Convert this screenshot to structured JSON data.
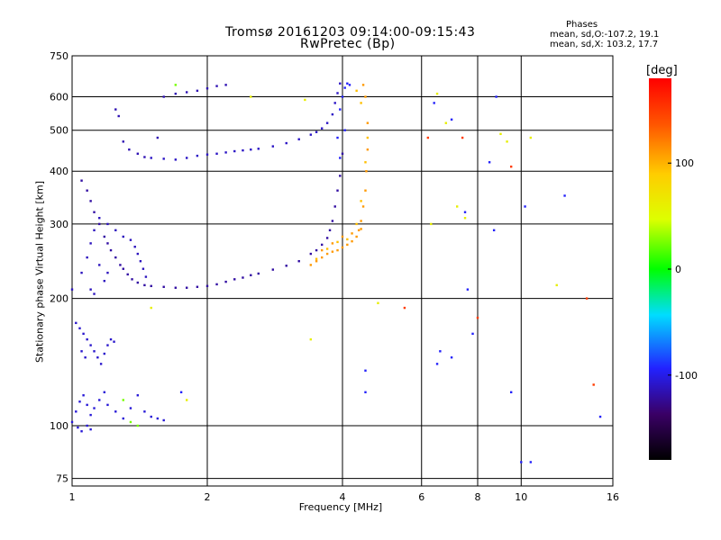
{
  "title": "Tromsø 20161203 09:14:00-09:15:43",
  "subtitle": "RwPretec (Bp)",
  "phases_info": {
    "heading": "Phases",
    "line_o": "mean, sd,O:-107.2, 19.1",
    "line_x": "mean, sd,X: 103.2, 17.7"
  },
  "chart_data": {
    "type": "scatter",
    "xlabel": "Frequency [MHz]",
    "ylabel": "Stationary phase Virtual Height [km]",
    "x_scale": "log",
    "y_scale": "log",
    "xlim": [
      1,
      16
    ],
    "ylim": [
      72,
      750
    ],
    "x_ticks": [
      1,
      2,
      4,
      6,
      8,
      10,
      16
    ],
    "y_ticks": [
      75,
      100,
      200,
      300,
      400,
      500,
      600,
      750
    ],
    "grid": true,
    "colorbar": {
      "label": "[deg]",
      "range": [
        -180,
        180
      ],
      "ticks": [
        100,
        0,
        -100
      ]
    },
    "series": [
      {
        "phase": -110,
        "points": [
          [
            1.5,
            430
          ],
          [
            1.6,
            428
          ],
          [
            1.7,
            426
          ],
          [
            1.8,
            430
          ],
          [
            1.9,
            435
          ],
          [
            2.0,
            438
          ],
          [
            2.1,
            440
          ],
          [
            2.2,
            443
          ],
          [
            2.3,
            446
          ],
          [
            2.4,
            448
          ],
          [
            2.5,
            450
          ],
          [
            2.6,
            452
          ],
          [
            2.8,
            458
          ],
          [
            3.0,
            466
          ],
          [
            3.2,
            476
          ],
          [
            3.4,
            488
          ],
          [
            3.5,
            495
          ],
          [
            3.6,
            505
          ],
          [
            3.7,
            520
          ],
          [
            3.8,
            545
          ],
          [
            3.85,
            580
          ],
          [
            3.9,
            612
          ],
          [
            3.95,
            645
          ]
        ]
      },
      {
        "phase": -115,
        "points": [
          [
            1.3,
            470
          ],
          [
            1.34,
            450
          ],
          [
            1.4,
            440
          ],
          [
            1.45,
            432
          ],
          [
            1.55,
            480
          ],
          [
            1.6,
            600
          ],
          [
            1.7,
            610
          ],
          [
            1.8,
            615
          ],
          [
            1.9,
            620
          ],
          [
            2.0,
            628
          ],
          [
            2.1,
            636
          ],
          [
            2.2,
            640
          ],
          [
            1.25,
            560
          ],
          [
            1.27,
            540
          ]
        ]
      },
      {
        "phase": -120,
        "points": [
          [
            1.05,
            380
          ],
          [
            1.08,
            360
          ],
          [
            1.1,
            340
          ],
          [
            1.12,
            320
          ],
          [
            1.15,
            300
          ],
          [
            1.18,
            280
          ],
          [
            1.2,
            270
          ],
          [
            1.22,
            260
          ],
          [
            1.25,
            250
          ],
          [
            1.28,
            240
          ],
          [
            1.3,
            235
          ],
          [
            1.33,
            228
          ],
          [
            1.36,
            222
          ],
          [
            1.4,
            218
          ],
          [
            1.45,
            215
          ],
          [
            1.5,
            214
          ],
          [
            1.6,
            213
          ],
          [
            1.7,
            212
          ],
          [
            1.8,
            212
          ],
          [
            1.9,
            213
          ],
          [
            2.0,
            214
          ],
          [
            2.1,
            216
          ],
          [
            2.2,
            219
          ],
          [
            2.3,
            222
          ],
          [
            2.4,
            224
          ],
          [
            2.5,
            227
          ],
          [
            2.6,
            229
          ],
          [
            2.8,
            234
          ],
          [
            3.0,
            239
          ],
          [
            3.2,
            245
          ],
          [
            3.4,
            255
          ],
          [
            3.5,
            260
          ],
          [
            3.6,
            268
          ],
          [
            3.7,
            278
          ],
          [
            3.75,
            290
          ],
          [
            3.8,
            305
          ],
          [
            3.85,
            330
          ],
          [
            3.9,
            360
          ],
          [
            3.95,
            390
          ],
          [
            4.0,
            440
          ]
        ]
      },
      {
        "phase": -112,
        "points": [
          [
            1.0,
            210
          ],
          [
            1.05,
            230
          ],
          [
            1.08,
            250
          ],
          [
            1.1,
            270
          ],
          [
            1.12,
            290
          ],
          [
            1.15,
            310
          ],
          [
            1.2,
            300
          ],
          [
            1.25,
            290
          ],
          [
            1.3,
            280
          ],
          [
            1.35,
            275
          ],
          [
            1.38,
            265
          ],
          [
            1.4,
            255
          ],
          [
            1.42,
            245
          ],
          [
            1.44,
            235
          ],
          [
            1.46,
            225
          ],
          [
            1.15,
            240
          ],
          [
            1.2,
            230
          ],
          [
            1.18,
            220
          ],
          [
            1.1,
            210
          ],
          [
            1.12,
            205
          ]
        ]
      },
      {
        "phase": -108,
        "points": [
          [
            1.02,
            175
          ],
          [
            1.04,
            170
          ],
          [
            1.06,
            165
          ],
          [
            1.08,
            160
          ],
          [
            1.1,
            155
          ],
          [
            1.12,
            150
          ],
          [
            1.14,
            145
          ],
          [
            1.16,
            140
          ],
          [
            1.18,
            148
          ],
          [
            1.2,
            155
          ],
          [
            1.22,
            160
          ],
          [
            1.24,
            158
          ],
          [
            1.05,
            150
          ],
          [
            1.07,
            145
          ]
        ]
      },
      {
        "phase": -105,
        "points": [
          [
            1.0,
            102
          ],
          [
            1.02,
            108
          ],
          [
            1.04,
            114
          ],
          [
            1.06,
            118
          ],
          [
            1.08,
            112
          ],
          [
            1.1,
            106
          ],
          [
            1.12,
            110
          ],
          [
            1.15,
            115
          ],
          [
            1.18,
            120
          ],
          [
            1.2,
            112
          ],
          [
            1.25,
            108
          ],
          [
            1.3,
            104
          ],
          [
            1.35,
            110
          ],
          [
            1.4,
            118
          ],
          [
            1.45,
            108
          ],
          [
            1.5,
            105
          ],
          [
            1.55,
            104
          ],
          [
            1.6,
            103
          ],
          [
            1.03,
            99
          ],
          [
            1.05,
            97
          ],
          [
            1.08,
            100
          ],
          [
            1.1,
            98
          ]
        ]
      },
      {
        "phase": 110,
        "points": [
          [
            3.4,
            240
          ],
          [
            3.5,
            245
          ],
          [
            3.6,
            250
          ],
          [
            3.7,
            255
          ],
          [
            3.8,
            258
          ],
          [
            3.9,
            260
          ],
          [
            4.0,
            264
          ],
          [
            4.1,
            268
          ],
          [
            4.2,
            273
          ],
          [
            4.3,
            280
          ],
          [
            4.35,
            290
          ],
          [
            4.4,
            305
          ],
          [
            4.45,
            330
          ],
          [
            4.5,
            360
          ],
          [
            4.52,
            400
          ],
          [
            4.55,
            450
          ],
          [
            4.55,
            520
          ],
          [
            4.5,
            600
          ],
          [
            4.45,
            640
          ],
          [
            3.6,
            260
          ],
          [
            3.8,
            270
          ],
          [
            4.0,
            280
          ],
          [
            4.2,
            285
          ],
          [
            4.4,
            292
          ]
        ]
      },
      {
        "phase": 95,
        "points": [
          [
            3.5,
            248
          ],
          [
            3.7,
            262
          ],
          [
            3.9,
            272
          ],
          [
            4.1,
            276
          ],
          [
            4.3,
            300
          ],
          [
            4.4,
            340
          ],
          [
            4.5,
            420
          ],
          [
            4.55,
            480
          ],
          [
            4.4,
            580
          ],
          [
            4.3,
            620
          ]
        ]
      },
      {
        "phase": -95,
        "points": [
          [
            3.95,
            560
          ],
          [
            4.0,
            600
          ],
          [
            4.05,
            630
          ],
          [
            4.1,
            645
          ],
          [
            4.15,
            640
          ],
          [
            4.05,
            500
          ],
          [
            3.9,
            480
          ],
          [
            3.95,
            430
          ]
        ]
      },
      {
        "phase": 60,
        "points": [
          [
            6.3,
            300
          ],
          [
            6.5,
            610
          ],
          [
            6.8,
            520
          ],
          [
            7.2,
            330
          ],
          [
            7.5,
            310
          ],
          [
            9.0,
            490
          ],
          [
            9.3,
            470
          ],
          [
            10.5,
            480
          ],
          [
            12.0,
            215
          ],
          [
            4.8,
            195
          ],
          [
            3.4,
            160
          ],
          [
            1.8,
            115
          ],
          [
            1.5,
            190
          ],
          [
            2.5,
            600
          ],
          [
            3.3,
            590
          ]
        ]
      },
      {
        "phase": -95,
        "points": [
          [
            6.4,
            580
          ],
          [
            7.0,
            530
          ],
          [
            7.5,
            320
          ],
          [
            7.6,
            210
          ],
          [
            7.8,
            165
          ],
          [
            8.5,
            420
          ],
          [
            8.8,
            600
          ],
          [
            8.7,
            290
          ],
          [
            10.2,
            330
          ],
          [
            12.5,
            350
          ],
          [
            6.6,
            150
          ],
          [
            7.0,
            145
          ],
          [
            9.5,
            120
          ],
          [
            4.5,
            135
          ],
          [
            4.5,
            120
          ],
          [
            6.5,
            140
          ],
          [
            10.0,
            82
          ],
          [
            10.5,
            82
          ],
          [
            15.0,
            105
          ],
          [
            1.75,
            120
          ]
        ]
      },
      {
        "phase": 150,
        "points": [
          [
            6.2,
            480
          ],
          [
            7.4,
            480
          ],
          [
            8.0,
            180
          ],
          [
            9.5,
            410
          ],
          [
            14.0,
            200
          ],
          [
            14.5,
            125
          ],
          [
            5.5,
            190
          ]
        ]
      },
      {
        "phase": 25,
        "points": [
          [
            1.3,
            115
          ],
          [
            1.35,
            102
          ],
          [
            1.4,
            100
          ],
          [
            1.7,
            640
          ]
        ]
      }
    ]
  }
}
